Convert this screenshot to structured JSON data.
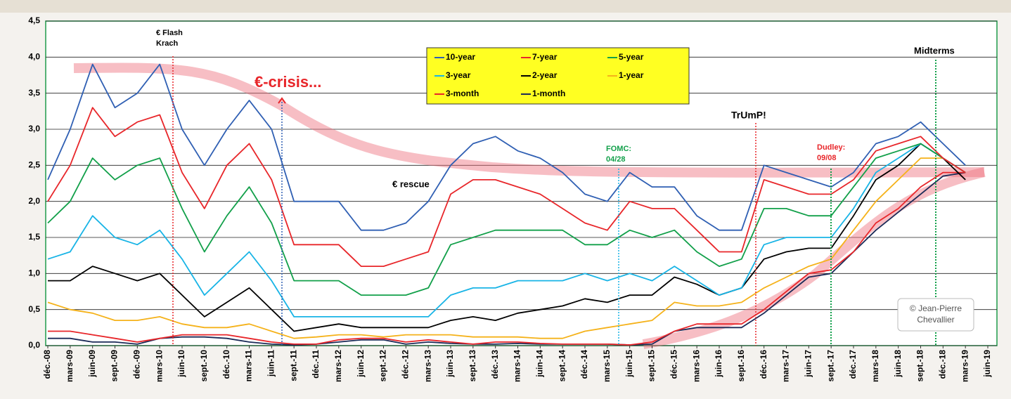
{
  "chart_data": {
    "type": "line",
    "categories": [
      "déc.-08",
      "mars-09",
      "juin-09",
      "sept.-09",
      "déc.-09",
      "mars-10",
      "juin-10",
      "sept.-10",
      "déc.-10",
      "mars-11",
      "juin-11",
      "sept.-11",
      "déc.-11",
      "mars-12",
      "juin-12",
      "sept.-12",
      "déc.-12",
      "mars-13",
      "juin-13",
      "sept.-13",
      "déc.-13",
      "mars-14",
      "juin-14",
      "sept.-14",
      "déc.-14",
      "mars-15",
      "juin-15",
      "sept.-15",
      "déc.-15",
      "mars-16",
      "juin-16",
      "sept.-16",
      "déc.-16",
      "mars-17",
      "juin-17",
      "sept.-17",
      "déc.-17",
      "mars-18",
      "juin-18",
      "sept.-18",
      "déc.-18",
      "mars-19",
      "juin-19"
    ],
    "series": [
      {
        "name": "10-year",
        "color": "#2f5fb3",
        "values": [
          2.3,
          3.0,
          3.9,
          3.3,
          3.5,
          3.9,
          3.0,
          2.5,
          3.0,
          3.4,
          3.0,
          2.0,
          2.0,
          2.0,
          1.6,
          1.6,
          1.7,
          2.0,
          2.5,
          2.8,
          2.9,
          2.7,
          2.6,
          2.4,
          2.1,
          2.0,
          2.4,
          2.2,
          2.2,
          1.8,
          1.6,
          1.6,
          2.5,
          2.4,
          2.3,
          2.2,
          2.4,
          2.8,
          2.9,
          3.1,
          2.8,
          2.5,
          null
        ]
      },
      {
        "name": "7-year",
        "color": "#e8262a",
        "values": [
          2.0,
          2.5,
          3.3,
          2.9,
          3.1,
          3.2,
          2.4,
          1.9,
          2.5,
          2.8,
          2.3,
          1.4,
          1.4,
          1.4,
          1.1,
          1.1,
          1.2,
          1.3,
          2.1,
          2.3,
          2.3,
          2.2,
          2.1,
          1.9,
          1.7,
          1.6,
          2.0,
          1.9,
          1.9,
          1.6,
          1.3,
          1.3,
          2.3,
          2.2,
          2.1,
          2.1,
          2.3,
          2.7,
          2.8,
          2.9,
          2.6,
          2.4,
          null
        ]
      },
      {
        "name": "5-year",
        "color": "#12a04a",
        "values": [
          1.7,
          2.0,
          2.6,
          2.3,
          2.5,
          2.6,
          1.9,
          1.3,
          1.8,
          2.2,
          1.7,
          0.9,
          0.9,
          0.9,
          0.7,
          0.7,
          0.7,
          0.8,
          1.4,
          1.5,
          1.6,
          1.6,
          1.6,
          1.6,
          1.4,
          1.4,
          1.6,
          1.5,
          1.6,
          1.3,
          1.1,
          1.2,
          1.9,
          1.9,
          1.8,
          1.8,
          2.2,
          2.6,
          2.7,
          2.8,
          2.6,
          2.4,
          null
        ]
      },
      {
        "name": "3-year",
        "color": "#18b4e6",
        "values": [
          1.2,
          1.3,
          1.8,
          1.5,
          1.4,
          1.6,
          1.2,
          0.7,
          1.0,
          1.3,
          0.9,
          0.4,
          0.4,
          0.4,
          0.4,
          0.4,
          0.4,
          0.4,
          0.7,
          0.8,
          0.8,
          0.9,
          0.9,
          0.9,
          1.0,
          0.9,
          1.0,
          0.9,
          1.1,
          0.9,
          0.7,
          0.8,
          1.4,
          1.5,
          1.5,
          1.5,
          1.9,
          2.4,
          2.6,
          2.8,
          2.6,
          2.4,
          null
        ]
      },
      {
        "name": "2-year",
        "color": "#000000",
        "values": [
          0.9,
          0.9,
          1.1,
          1.0,
          0.9,
          1.0,
          0.7,
          0.4,
          0.6,
          0.8,
          0.5,
          0.2,
          0.25,
          0.3,
          0.25,
          0.25,
          0.25,
          0.25,
          0.35,
          0.4,
          0.35,
          0.45,
          0.5,
          0.55,
          0.65,
          0.6,
          0.7,
          0.7,
          0.95,
          0.85,
          0.7,
          0.8,
          1.2,
          1.3,
          1.35,
          1.35,
          1.8,
          2.3,
          2.5,
          2.8,
          2.6,
          2.3,
          null
        ]
      },
      {
        "name": "1-year",
        "color": "#f5b21a",
        "values": [
          0.6,
          0.5,
          0.45,
          0.35,
          0.35,
          0.4,
          0.3,
          0.25,
          0.25,
          0.3,
          0.2,
          0.1,
          0.12,
          0.15,
          0.15,
          0.12,
          0.15,
          0.15,
          0.15,
          0.12,
          0.12,
          0.12,
          0.1,
          0.1,
          0.2,
          0.25,
          0.3,
          0.35,
          0.6,
          0.55,
          0.55,
          0.6,
          0.8,
          0.95,
          1.1,
          1.2,
          1.6,
          2.0,
          2.3,
          2.6,
          2.6,
          2.4,
          null
        ]
      },
      {
        "name": "3-month",
        "color": "#e8262a",
        "values": [
          0.2,
          0.2,
          0.15,
          0.1,
          0.05,
          0.1,
          0.15,
          0.15,
          0.15,
          0.1,
          0.05,
          0.02,
          0.02,
          0.08,
          0.1,
          0.1,
          0.05,
          0.08,
          0.05,
          0.02,
          0.05,
          0.05,
          0.03,
          0.02,
          0.02,
          0.02,
          0.01,
          0.05,
          0.2,
          0.3,
          0.3,
          0.3,
          0.5,
          0.75,
          1.0,
          1.05,
          1.3,
          1.7,
          1.9,
          2.2,
          2.4,
          2.4,
          null
        ]
      },
      {
        "name": "1-month",
        "color": "#1b2a57",
        "values": [
          0.1,
          0.1,
          0.05,
          0.05,
          0.02,
          0.1,
          0.12,
          0.12,
          0.1,
          0.05,
          0.02,
          0.01,
          0.02,
          0.05,
          0.08,
          0.08,
          0.02,
          0.05,
          0.03,
          0.02,
          0.02,
          0.03,
          0.02,
          0.02,
          0.02,
          0.02,
          0.01,
          0.02,
          0.2,
          0.25,
          0.25,
          0.25,
          0.45,
          0.7,
          0.95,
          1.0,
          1.3,
          1.6,
          1.85,
          2.1,
          2.35,
          2.4,
          null
        ]
      }
    ],
    "ylim": [
      0,
      4.5
    ],
    "yticks": [
      {
        "value": 0,
        "label": "0,0"
      },
      {
        "value": 0.5,
        "label": "0,5"
      },
      {
        "value": 1,
        "label": "1,0"
      },
      {
        "value": 1.5,
        "label": "1,5"
      },
      {
        "value": 2,
        "label": "2,0"
      },
      {
        "value": 2.5,
        "label": "2,5"
      },
      {
        "value": 3,
        "label": "3,0"
      },
      {
        "value": 3.5,
        "label": "3,5"
      },
      {
        "value": 4,
        "label": "4,0"
      },
      {
        "value": 4.5,
        "label": "4,5"
      }
    ],
    "grid": true,
    "annotations": [
      "€ Flash",
      "Krach",
      "€-crisis...",
      "€ rescue",
      "FOMC:",
      "04/28",
      "TrUmP!",
      "Dudley:",
      "09/08",
      "Midterms"
    ],
    "credit": [
      "© Jean-Pierre",
      "Chevallier"
    ]
  }
}
